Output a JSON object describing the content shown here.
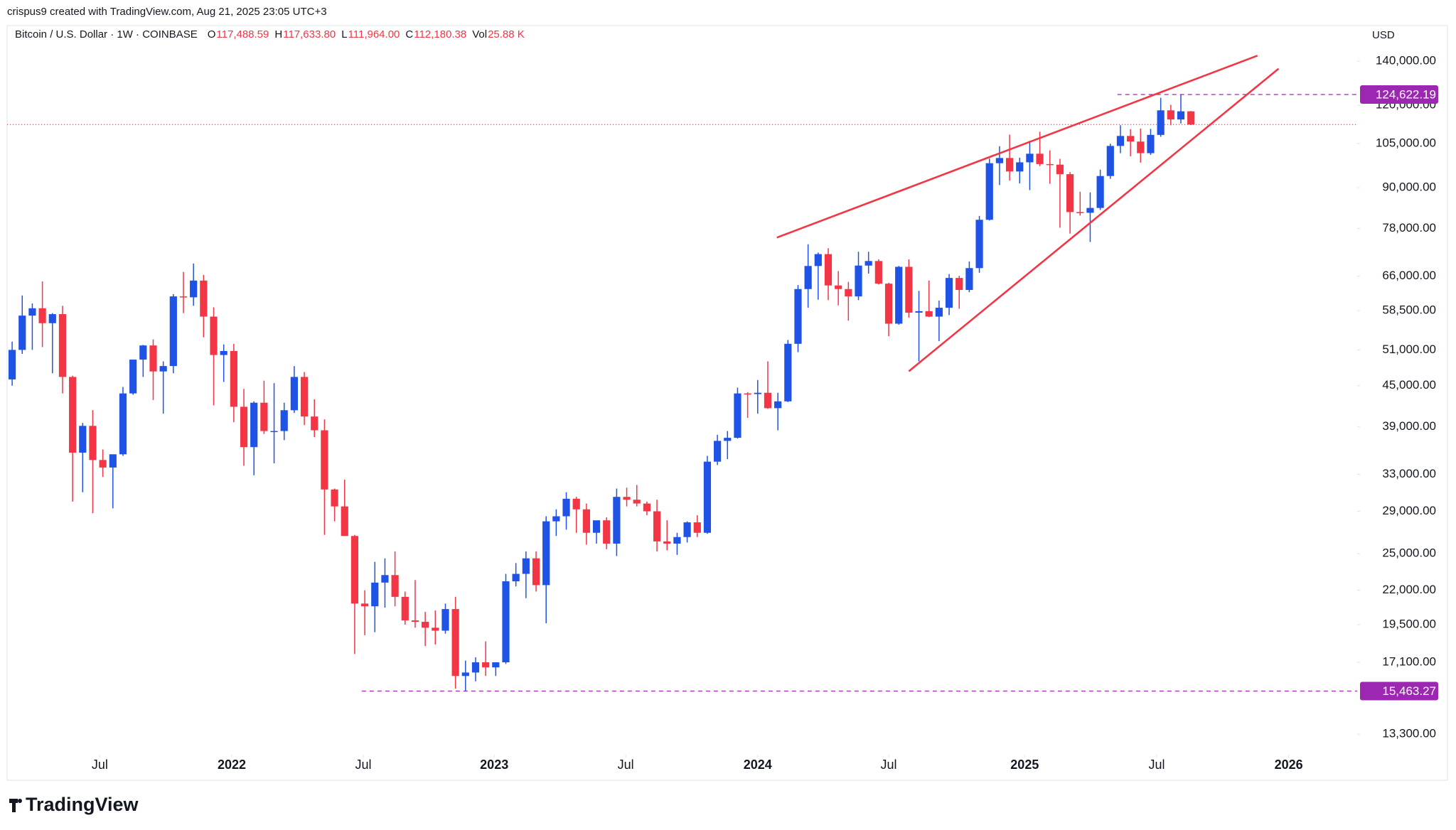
{
  "header": {
    "credit": "crispus9 created with TradingView.com, Aug 21, 2025 23:05 UTC+3",
    "symbol": "Bitcoin / U.S. Dollar · 1W · COINBASE",
    "ohlc": [
      {
        "key": "O",
        "value": "117,488.59"
      },
      {
        "key": "H",
        "value": "117,633.80"
      },
      {
        "key": "L",
        "value": "111,964.00"
      },
      {
        "key": "C",
        "value": "112,180.38"
      },
      {
        "key": "Vol",
        "value": "25.88 K"
      }
    ],
    "currency": "USD"
  },
  "footer": {
    "logo": "TradingView"
  },
  "chart_data": {
    "type": "candlestick",
    "log_scale": true,
    "up_color": "#1e53e5",
    "down_color": "#f23645",
    "xlim": [
      0,
      134
    ],
    "ylim": [
      12440,
      158200
    ],
    "xticks": [
      {
        "value": 9.2,
        "label": "Jul"
      },
      {
        "value": 22.3,
        "label": "2022"
      },
      {
        "value": 35.35,
        "label": "Jul"
      },
      {
        "value": 48.35,
        "label": "2023"
      },
      {
        "value": 61.4,
        "label": "Jul"
      },
      {
        "value": 74.5,
        "label": "2024"
      },
      {
        "value": 87.5,
        "label": "Jul"
      },
      {
        "value": 101,
        "label": "2025"
      },
      {
        "value": 114.1,
        "label": "Jul"
      },
      {
        "value": 127.2,
        "label": "2026"
      }
    ],
    "yticks": [
      {
        "value": 140000,
        "label": "140,000.00"
      },
      {
        "value": 120000,
        "label": "120,000.00"
      },
      {
        "value": 105000,
        "label": "105,000.00"
      },
      {
        "value": 90000,
        "label": "90,000.00"
      },
      {
        "value": 78000,
        "label": "78,000.00"
      },
      {
        "value": 66000,
        "label": "66,000.00"
      },
      {
        "value": 58500,
        "label": "58,500.00"
      },
      {
        "value": 51000,
        "label": "51,000.00"
      },
      {
        "value": 45000,
        "label": "45,000.00"
      },
      {
        "value": 39000,
        "label": "39,000.00"
      },
      {
        "value": 33000,
        "label": "33,000.00"
      },
      {
        "value": 29000,
        "label": "29,000.00"
      },
      {
        "value": 25000,
        "label": "25,000.00"
      },
      {
        "value": 22000,
        "label": "22,000.00"
      },
      {
        "value": 19500,
        "label": "19,500.00"
      },
      {
        "value": 17100,
        "label": "17,100.00"
      },
      {
        "value": 13300,
        "label": "13,300.00"
      }
    ],
    "candles": [
      [
        46000,
        52500,
        45000,
        51000
      ],
      [
        51000,
        61700,
        50300,
        57500
      ],
      [
        57500,
        60000,
        51000,
        59000
      ],
      [
        59000,
        64800,
        51500,
        56000
      ],
      [
        56000,
        58000,
        47000,
        57800
      ],
      [
        57800,
        59500,
        43800,
        46400
      ],
      [
        46400,
        46600,
        30000,
        35600
      ],
      [
        35600,
        39500,
        31000,
        39100
      ],
      [
        39100,
        41300,
        28800,
        34700
      ],
      [
        34700,
        36000,
        32700,
        33800
      ],
      [
        33800,
        35000,
        29300,
        35400
      ],
      [
        35400,
        44800,
        35200,
        43800
      ],
      [
        43800,
        49300,
        43600,
        49300
      ],
      [
        49300,
        51900,
        46400,
        51800
      ],
      [
        51800,
        52900,
        42800,
        47300
      ],
      [
        47300,
        49000,
        40800,
        48200
      ],
      [
        48200,
        62000,
        47000,
        61500
      ],
      [
        61500,
        67000,
        58000,
        61300
      ],
      [
        61300,
        69000,
        59500,
        65000
      ],
      [
        65000,
        66300,
        53300,
        57300
      ],
      [
        57300,
        59200,
        42000,
        50100
      ],
      [
        50100,
        52000,
        45600,
        50800
      ],
      [
        50800,
        52100,
        39600,
        41800
      ],
      [
        41800,
        44500,
        34000,
        36300
      ],
      [
        36300,
        42600,
        32900,
        42400
      ],
      [
        42400,
        45800,
        38000,
        38400
      ],
      [
        38400,
        45400,
        34300,
        38400
      ],
      [
        38400,
        42400,
        37200,
        41300
      ],
      [
        41300,
        48200,
        40900,
        46400
      ],
      [
        46400,
        47200,
        39200,
        40400
      ],
      [
        40400,
        42900,
        37600,
        38500
      ],
      [
        38500,
        40000,
        26700,
        31300
      ],
      [
        31300,
        31400,
        28000,
        29500
      ],
      [
        29500,
        32400,
        26600,
        26600
      ],
      [
        26600,
        26700,
        17600,
        21000
      ],
      [
        21000,
        22000,
        18800,
        20800
      ],
      [
        20800,
        24300,
        19000,
        22600
      ],
      [
        22600,
        24600,
        20700,
        23200
      ],
      [
        23200,
        25200,
        20800,
        21500
      ],
      [
        21500,
        21900,
        19500,
        19800
      ],
      [
        19800,
        22800,
        19300,
        19700
      ],
      [
        19700,
        20400,
        18100,
        19300
      ],
      [
        19300,
        20500,
        18200,
        19100
      ],
      [
        19100,
        21000,
        18900,
        20600
      ],
      [
        20600,
        21500,
        15600,
        16300
      ],
      [
        16300,
        17200,
        15460,
        16500
      ],
      [
        16500,
        17400,
        16000,
        17100
      ],
      [
        17100,
        18400,
        16300,
        16800
      ],
      [
        16800,
        17000,
        16300,
        17100
      ],
      [
        17100,
        23300,
        17000,
        22700
      ],
      [
        22700,
        24200,
        22300,
        23300
      ],
      [
        23300,
        25200,
        21400,
        24600
      ],
      [
        24600,
        25200,
        21900,
        22400
      ],
      [
        22400,
        28500,
        19600,
        28000
      ],
      [
        28000,
        29200,
        26600,
        28500
      ],
      [
        28500,
        31000,
        27200,
        30300
      ],
      [
        30300,
        30500,
        26900,
        29200
      ],
      [
        29200,
        29800,
        25800,
        26900
      ],
      [
        26900,
        27600,
        25900,
        28100
      ],
      [
        28100,
        28400,
        25400,
        25900
      ],
      [
        25900,
        31400,
        24800,
        30500
      ],
      [
        30500,
        31500,
        29500,
        30200
      ],
      [
        30200,
        31800,
        29500,
        29800
      ],
      [
        29800,
        30000,
        28600,
        29000
      ],
      [
        29000,
        30200,
        25200,
        26100
      ],
      [
        26100,
        28100,
        25300,
        25900
      ],
      [
        25900,
        26900,
        24900,
        26500
      ],
      [
        26500,
        28000,
        26000,
        27900
      ],
      [
        27900,
        28600,
        26500,
        26900
      ],
      [
        26900,
        35200,
        26800,
        34500
      ],
      [
        34500,
        37900,
        34100,
        37100
      ],
      [
        37100,
        38400,
        34800,
        37500
      ],
      [
        37500,
        44700,
        37400,
        43800
      ],
      [
        43800,
        44000,
        40200,
        43700
      ],
      [
        43700,
        45900,
        40800,
        43900
      ],
      [
        43900,
        49000,
        41500,
        41600
      ],
      [
        41600,
        43900,
        38500,
        42600
      ],
      [
        42600,
        52800,
        42500,
        52100
      ],
      [
        52100,
        64000,
        50600,
        63100
      ],
      [
        63100,
        73800,
        59100,
        68400
      ],
      [
        68400,
        71700,
        60800,
        71300
      ],
      [
        71300,
        72800,
        60700,
        63900
      ],
      [
        63900,
        67200,
        59600,
        63100
      ],
      [
        63100,
        64700,
        56500,
        61500
      ],
      [
        61500,
        71900,
        60700,
        68500
      ],
      [
        68500,
        71900,
        66600,
        69600
      ],
      [
        69600,
        70000,
        64100,
        64300
      ],
      [
        64300,
        64500,
        53500,
        55900
      ],
      [
        55900,
        68400,
        55700,
        68200
      ],
      [
        68200,
        70000,
        57100,
        58100
      ],
      [
        58100,
        62700,
        49000,
        58400
      ],
      [
        58400,
        65000,
        57200,
        57300
      ],
      [
        57300,
        60600,
        52600,
        59100
      ],
      [
        59100,
        66500,
        57600,
        65600
      ],
      [
        65600,
        66100,
        58900,
        62900
      ],
      [
        62900,
        69500,
        62400,
        67900
      ],
      [
        67900,
        81500,
        66800,
        80400
      ],
      [
        80400,
        99600,
        80200,
        98000
      ],
      [
        98000,
        104000,
        90800,
        99800
      ],
      [
        99800,
        108300,
        92200,
        95200
      ],
      [
        95200,
        99900,
        91300,
        98300
      ],
      [
        98300,
        106000,
        89200,
        101300
      ],
      [
        101300,
        109400,
        97000,
        97700
      ],
      [
        97700,
        102500,
        91200,
        97500
      ],
      [
        97500,
        99500,
        78200,
        94300
      ],
      [
        94300,
        95000,
        76600,
        82600
      ],
      [
        82600,
        88700,
        81600,
        82400
      ],
      [
        82400,
        88500,
        74400,
        83800
      ],
      [
        83800,
        95800,
        83200,
        93700
      ],
      [
        93700,
        104900,
        92800,
        104100
      ],
      [
        104100,
        111900,
        101500,
        107800
      ],
      [
        107800,
        110400,
        100400,
        105700
      ],
      [
        105700,
        110600,
        98200,
        101500
      ],
      [
        101500,
        110500,
        100900,
        108200
      ],
      [
        108200,
        123200,
        107500,
        117900
      ],
      [
        117900,
        120200,
        111900,
        114200
      ],
      [
        114200,
        124600,
        112600,
        117500
      ],
      [
        117488.59,
        117633.8,
        111964.0,
        112180.38
      ]
    ],
    "trend_lines": [
      {
        "x": [
          76.4,
          124.1
        ],
        "y": [
          75550,
          142760
        ]
      },
      {
        "x": [
          89.5,
          126.2
        ],
        "y": [
          47330,
          136400
        ]
      }
    ],
    "trend_color": "#f23645",
    "price_lines": [
      {
        "value": 124622.19,
        "label": "124,622.19",
        "x_start": 110.2
      },
      {
        "value": 15463.27,
        "label": "15,463.27",
        "x_start": 35.2
      }
    ],
    "price_line_color": "#9c27b0"
  }
}
